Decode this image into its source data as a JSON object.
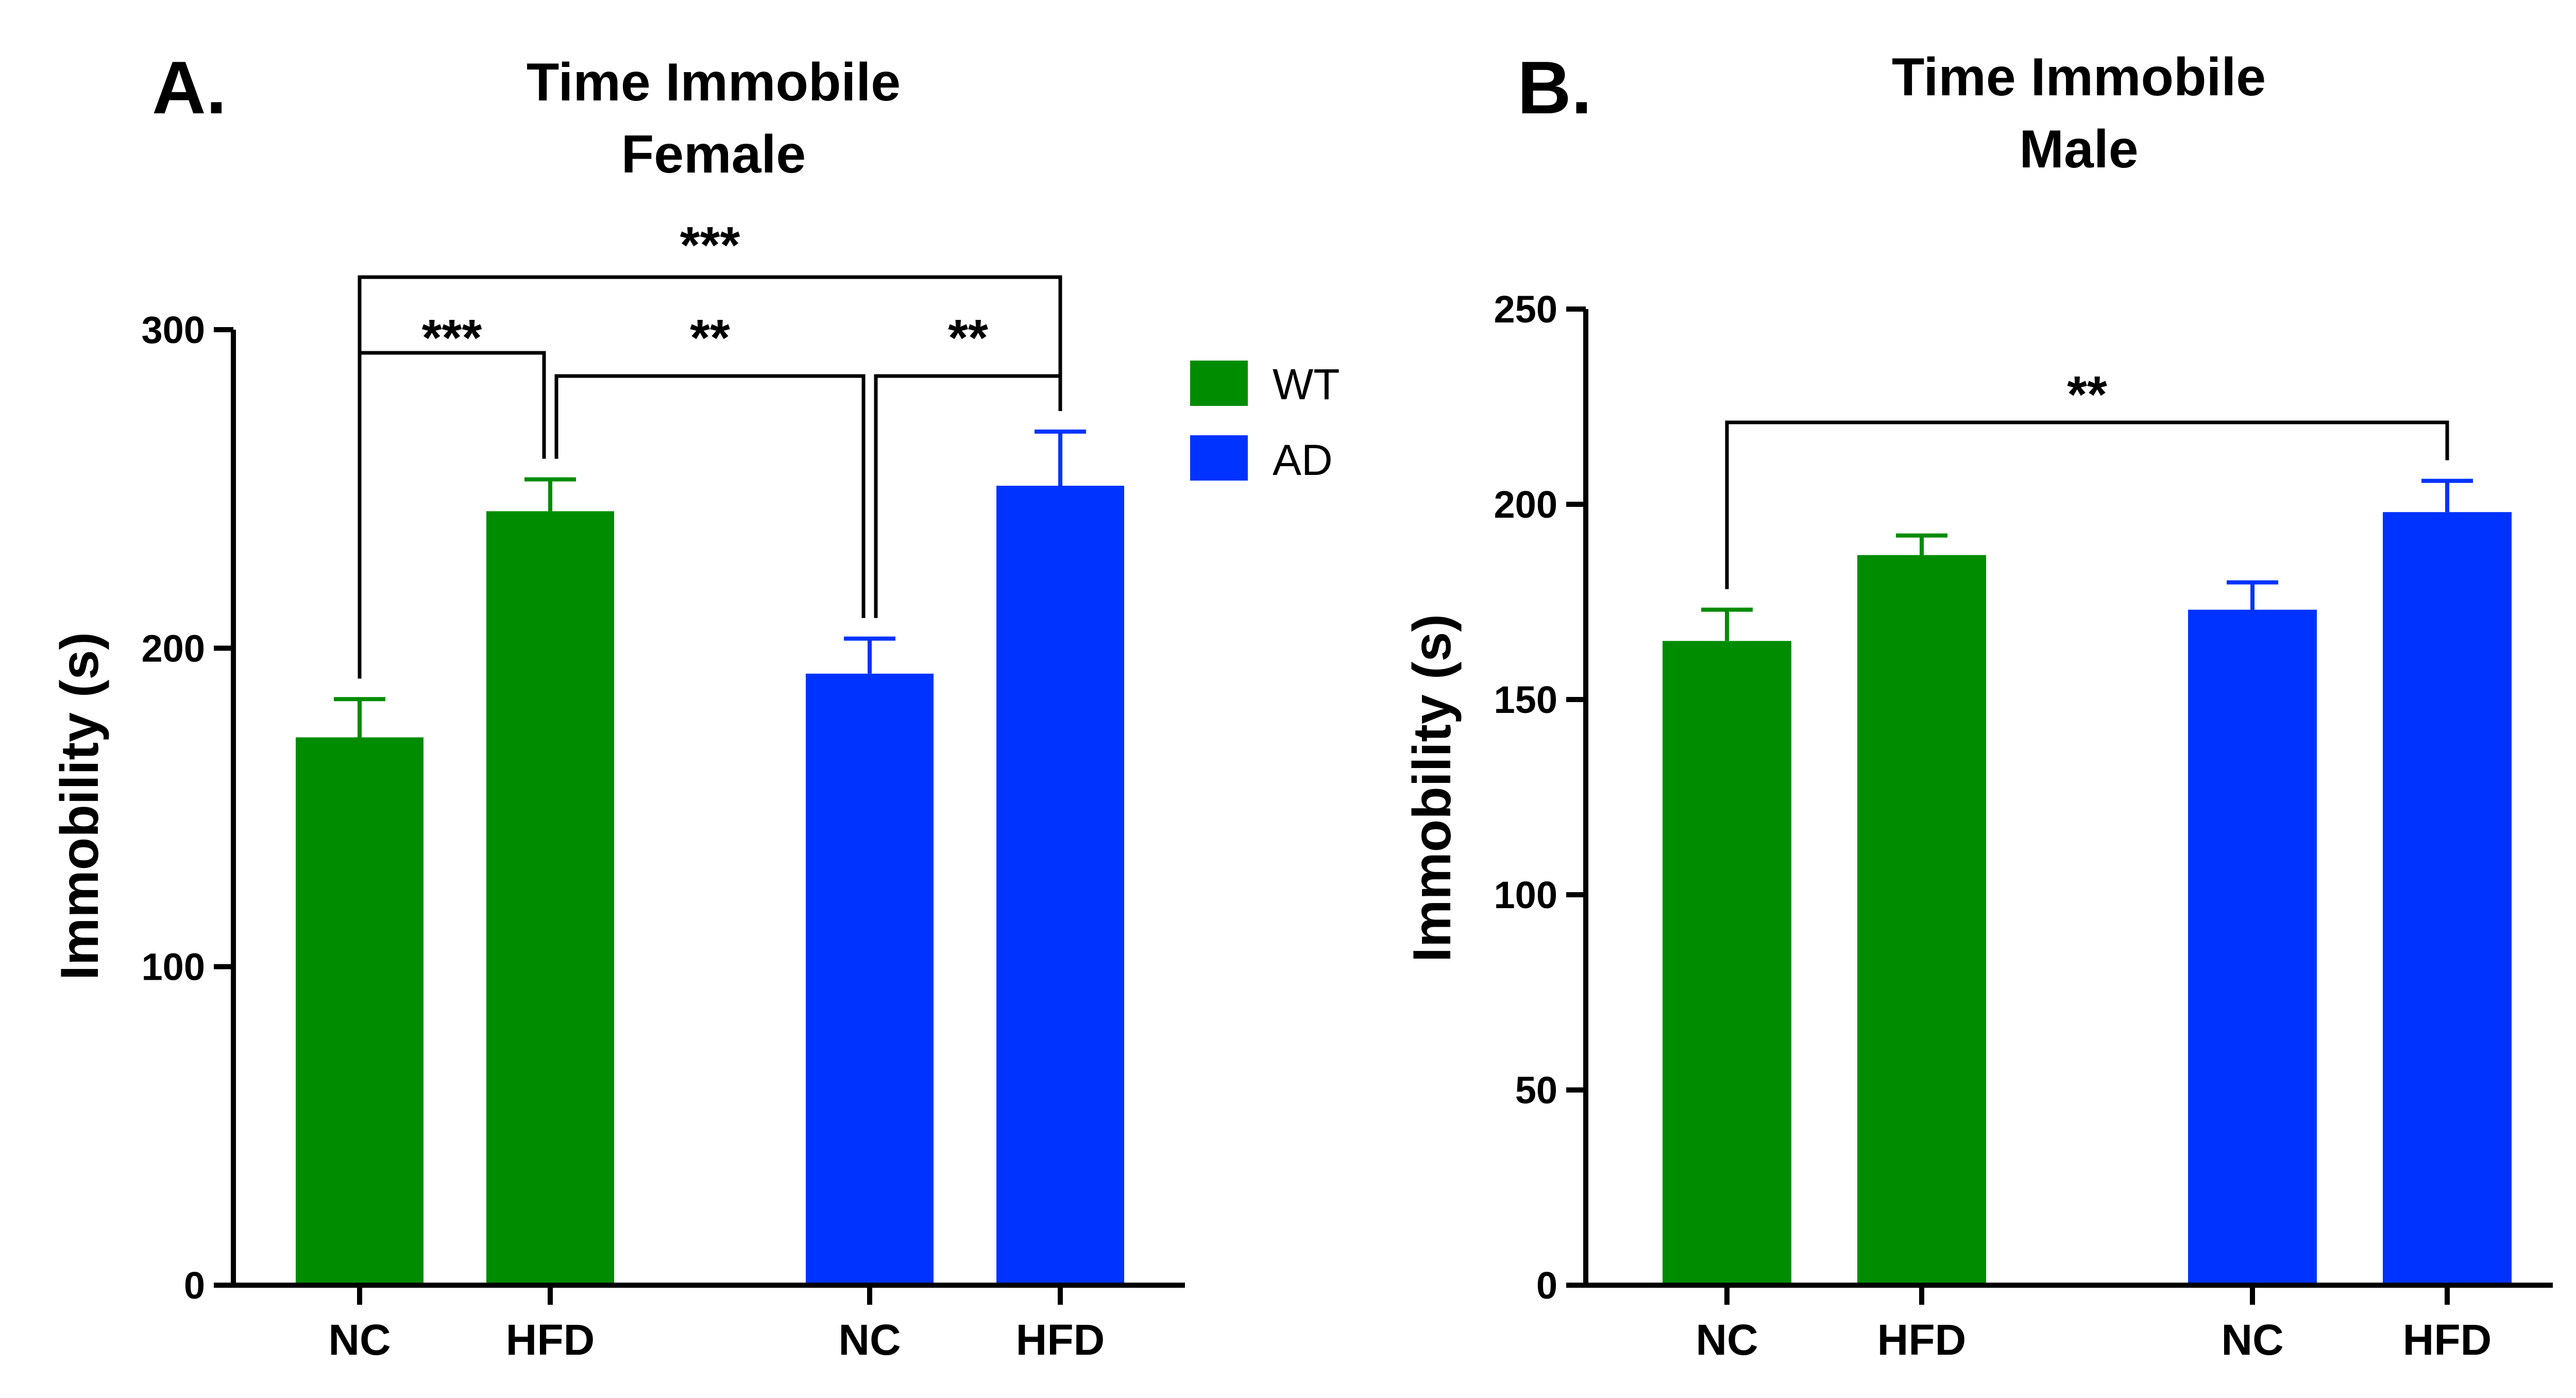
{
  "colors": {
    "WT": "#008C00",
    "AD": "#0033FF",
    "axis": "#000000"
  },
  "legend": [
    {
      "label": "WT",
      "color": "#008C00"
    },
    {
      "label": "AD",
      "color": "#0033FF"
    }
  ],
  "chart_data": [
    {
      "panel": "A.",
      "type": "bar",
      "title": [
        "Time Immobile",
        "Female"
      ],
      "ylabel": "Immobility (s)",
      "xlabel": "",
      "ylim": [
        0,
        300
      ],
      "yticks": [
        0,
        100,
        200,
        300
      ],
      "grid": false,
      "legend_position": "top-right",
      "categories": [
        "NC",
        "HFD",
        "NC",
        "HFD"
      ],
      "groups": [
        "WT",
        "WT",
        "AD",
        "AD"
      ],
      "values": [
        172,
        243,
        192,
        251
      ],
      "errors": [
        12,
        10,
        11,
        17
      ],
      "significance": [
        {
          "from": 0,
          "to": 1,
          "label": "***"
        },
        {
          "from": 1,
          "to": 2,
          "label": "**"
        },
        {
          "from": 2,
          "to": 3,
          "label": "**"
        },
        {
          "from": 0,
          "to": 3,
          "label": "***"
        }
      ]
    },
    {
      "panel": "B.",
      "type": "bar",
      "title": [
        "Time Immobile",
        "Male"
      ],
      "ylabel": "Immobility (s)",
      "xlabel": "",
      "ylim": [
        0,
        250
      ],
      "yticks": [
        0,
        50,
        100,
        150,
        200,
        250
      ],
      "grid": false,
      "categories": [
        "NC",
        "HFD",
        "NC",
        "HFD"
      ],
      "groups": [
        "WT",
        "WT",
        "AD",
        "AD"
      ],
      "values": [
        165,
        187,
        173,
        198
      ],
      "errors": [
        8,
        5,
        7,
        8
      ],
      "significance": [
        {
          "from": 0,
          "to": 3,
          "label": "**"
        }
      ]
    }
  ]
}
